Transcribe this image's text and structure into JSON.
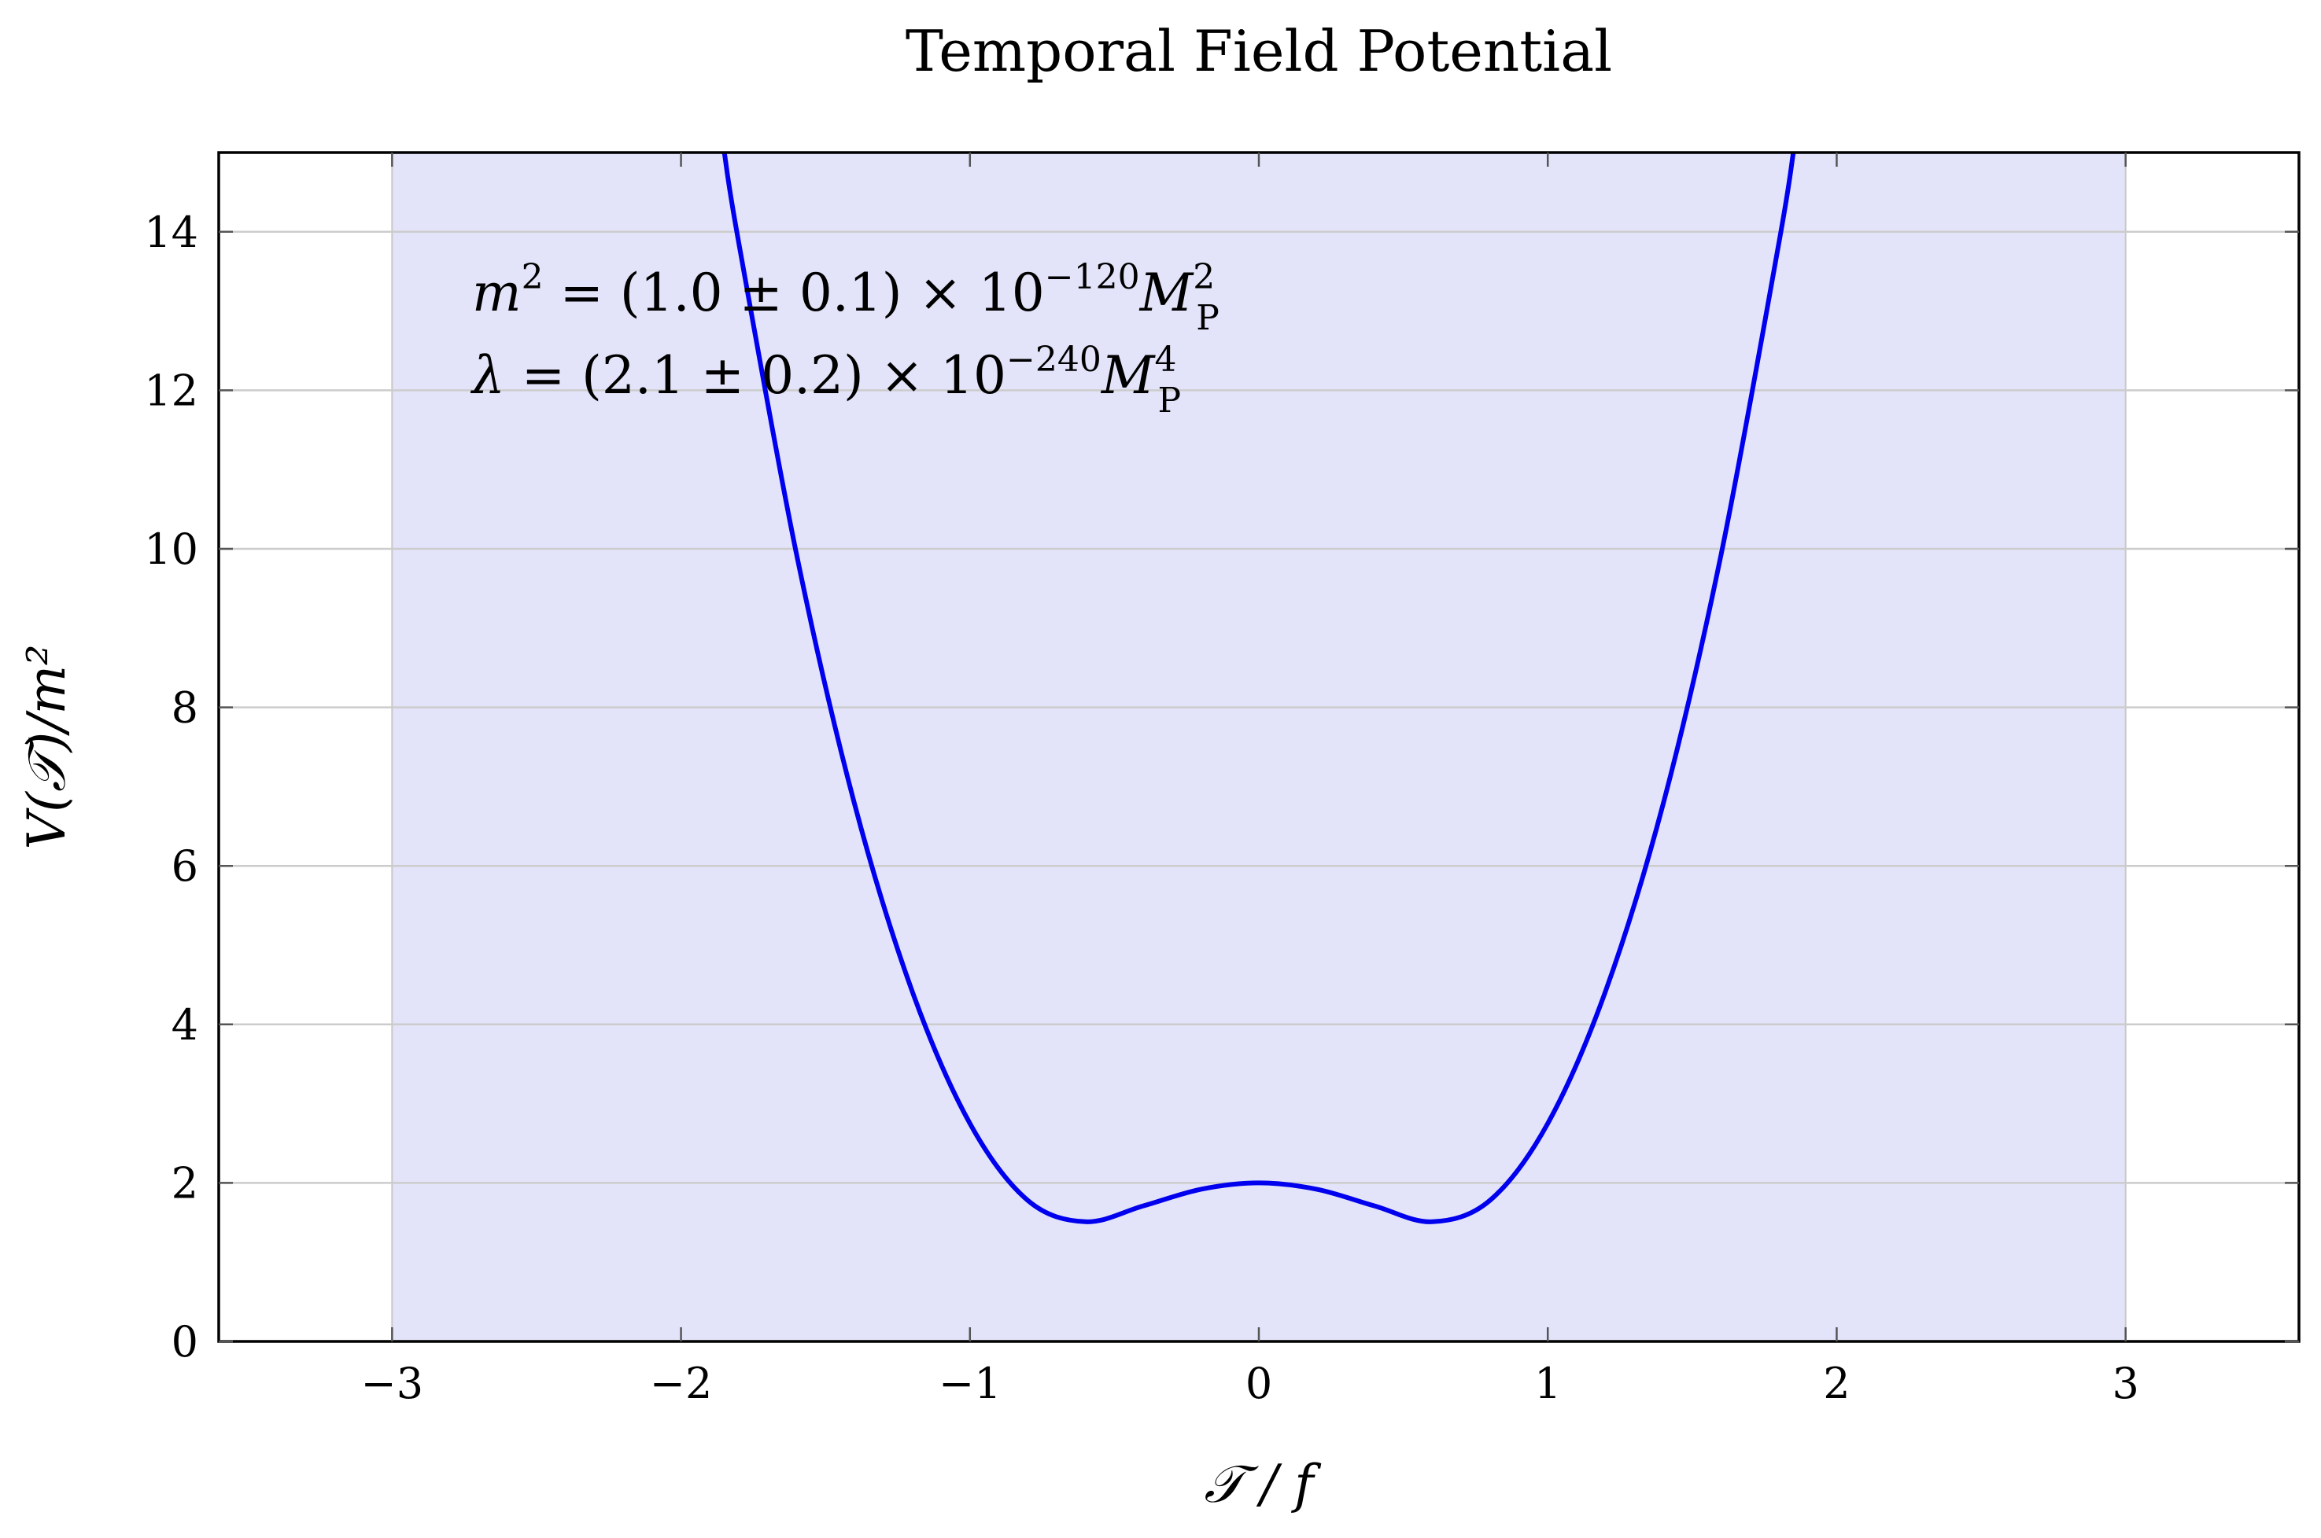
{
  "chart_data": {
    "type": "line",
    "title": "Temporal Field Potential",
    "xlabel": "𝒯 / f",
    "ylabel": "V(𝒯)/m²",
    "xlim": [
      -3.6,
      3.6
    ],
    "ylim": [
      0,
      15
    ],
    "x_ticks": [
      -3,
      -2,
      -1,
      0,
      1,
      2,
      3
    ],
    "x_tick_labels": [
      "−3",
      "−2",
      "−1",
      "0",
      "1",
      "2",
      "3"
    ],
    "y_ticks": [
      0,
      2,
      4,
      6,
      8,
      10,
      12,
      14
    ],
    "y_tick_labels": [
      "0",
      "2",
      "4",
      "6",
      "8",
      "10",
      "12",
      "14"
    ],
    "grid": "horizontal",
    "shaded_region": {
      "x_from": -3,
      "x_to": 3,
      "color": "#e3e4fa"
    },
    "series": [
      {
        "color": "#0000ee",
        "x": [
          -1.85,
          -1.8,
          -1.6,
          -1.4,
          -1.2,
          -1.0,
          -0.8,
          -0.6,
          -0.4,
          -0.2,
          0.0,
          0.2,
          0.4,
          0.6,
          0.8,
          1.0,
          1.2,
          1.4,
          1.6,
          1.8,
          1.85
        ],
        "y": [
          15.0,
          13.86,
          9.93,
          6.79,
          4.42,
          2.75,
          1.78,
          1.51,
          1.71,
          1.92,
          2.0,
          1.92,
          1.71,
          1.51,
          1.78,
          2.75,
          4.42,
          6.79,
          9.93,
          13.86,
          15.0
        ]
      }
    ],
    "annotations": [
      {
        "id": "m2",
        "lhs": "m",
        "lhs_sup": "2",
        "eq": " = (1.0 ± 0.1) × 10",
        "exp": "−120",
        "unit": "M",
        "unit_sup": "2",
        "unit_sub": "P"
      },
      {
        "id": "lambda",
        "lhs": "λ",
        "lhs_sup": "",
        "eq": " = (2.1 ± 0.2) × 10",
        "exp": "−240",
        "unit": "M",
        "unit_sup": "4",
        "unit_sub": "P"
      }
    ],
    "colors": {
      "line": "#0000ee",
      "shade": "#e3e4fa",
      "grid": "#cccccc",
      "axis": "#000000"
    }
  }
}
